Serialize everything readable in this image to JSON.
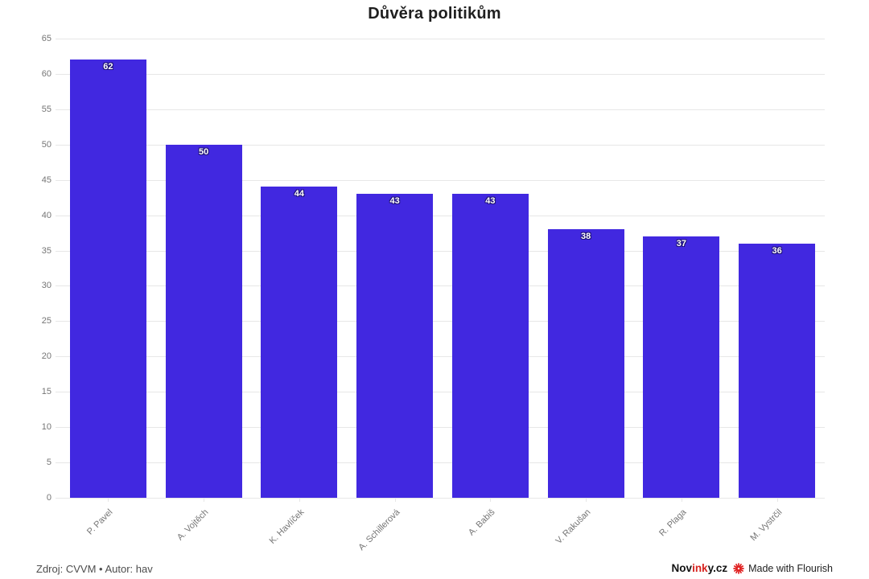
{
  "title": "Důvěra politikům",
  "chart_data": {
    "type": "bar",
    "title": "Důvěra politikům",
    "categories": [
      "P. Pavel",
      "A. Vojtěch",
      "K. Havlíček",
      "A. Schillerová",
      "A. Babiš",
      "V. Rakušan",
      "R. Plaga",
      "M. Vystrčil"
    ],
    "values": [
      62,
      50,
      44,
      43,
      43,
      38,
      37,
      36
    ],
    "xlabel": "",
    "ylabel": "",
    "ylim": [
      0,
      65
    ],
    "ytick_step": 5,
    "grid": true,
    "legend": false,
    "bar_labels_visible": true
  },
  "footer": {
    "source_text": "Zdroj: CVVM • Autor: hav",
    "brand_prefix": "Nov",
    "brand_highlight": "ink",
    "brand_suffix": "y.cz",
    "made_with_text": "Made with Flourish"
  },
  "colors": {
    "bar": "#4128e0",
    "value_label": "#ffffff",
    "value_outline": "#1e1275",
    "grid": "#e7e7e7",
    "axis_text": "#757575",
    "title_text": "#1f1f1f",
    "footer_text": "#4d4d4d",
    "brand_red": "#d6231f",
    "flourish_red": "#e01e1e"
  }
}
